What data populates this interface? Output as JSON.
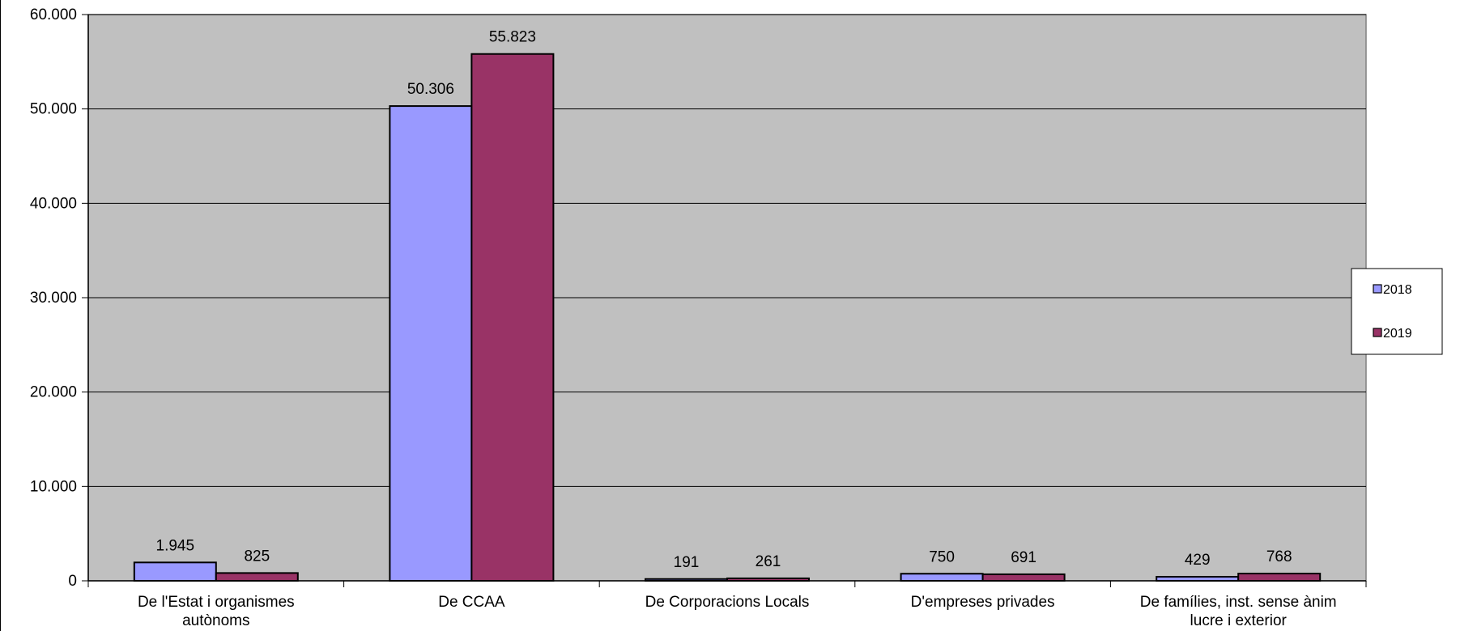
{
  "chart_data": {
    "type": "bar",
    "categories": [
      [
        "De l'Estat i organismes",
        "autònoms"
      ],
      [
        "De CCAA"
      ],
      [
        "De Corporacions Locals"
      ],
      [
        "D'empreses privades"
      ],
      [
        "De famílies, inst. sense ànim",
        "lucre i exterior"
      ]
    ],
    "series": [
      {
        "name": "2018",
        "color": "#9999FF",
        "values": [
          1945,
          50306,
          191,
          750,
          429
        ],
        "labels": [
          "1.945",
          "50.306",
          "191",
          "750",
          "429"
        ]
      },
      {
        "name": "2019",
        "color": "#993366",
        "values": [
          825,
          55823,
          261,
          691,
          768
        ],
        "labels": [
          "825",
          "55.823",
          "261",
          "691",
          "768"
        ]
      }
    ],
    "ylim": [
      0,
      60000
    ],
    "yticks": [
      0,
      10000,
      20000,
      30000,
      40000,
      50000,
      60000
    ],
    "ytick_labels": [
      "0",
      "10.000",
      "20.000",
      "30.000",
      "40.000",
      "50.000",
      "60.000"
    ],
    "grid": true,
    "plot_background": "#C0C0C0",
    "legend_position": "right"
  }
}
